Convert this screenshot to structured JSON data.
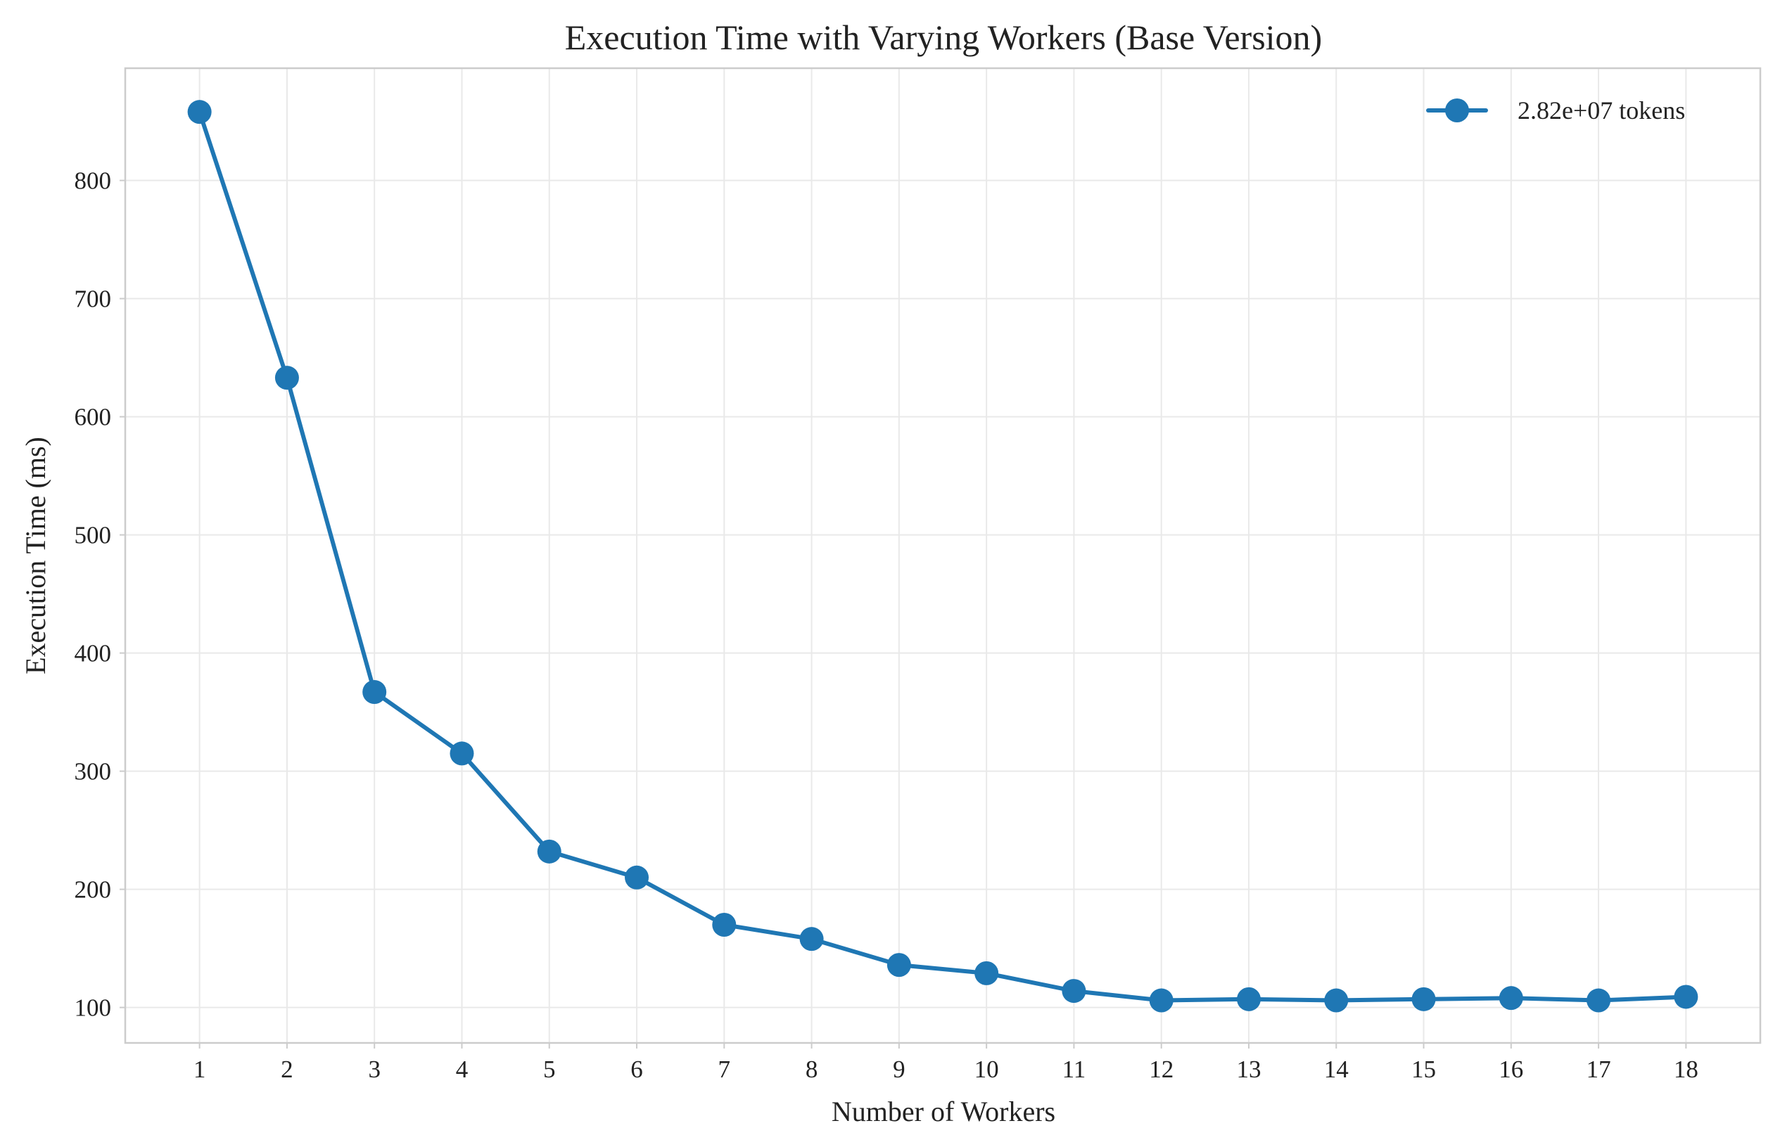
{
  "chart_data": {
    "type": "line",
    "title": "Execution Time with Varying Workers (Base Version)",
    "xlabel": "Number of Workers",
    "ylabel": "Execution Time (ms)",
    "x": [
      1,
      2,
      3,
      4,
      5,
      6,
      7,
      8,
      9,
      10,
      11,
      12,
      13,
      14,
      15,
      16,
      17,
      18
    ],
    "x_tick_labels": [
      "1",
      "2",
      "3",
      "4",
      "5",
      "6",
      "7",
      "8",
      "9",
      "10",
      "11",
      "12",
      "13",
      "14",
      "15",
      "16",
      "17",
      "18"
    ],
    "y_ticks": [
      100,
      200,
      300,
      400,
      500,
      600,
      700,
      800
    ],
    "y_tick_labels": [
      "100",
      "200",
      "300",
      "400",
      "500",
      "600",
      "700",
      "800"
    ],
    "series": [
      {
        "name": "2.82e+07 tokens",
        "color": "#1f77b4",
        "marker": "circle",
        "values": [
          858,
          633,
          367,
          315,
          232,
          210,
          170,
          158,
          136,
          129,
          114,
          106,
          107,
          106,
          107,
          108,
          106,
          109
        ]
      }
    ],
    "xlim": [
      0.15,
      18.85
    ],
    "ylim": [
      70,
      895
    ],
    "grid": true,
    "legend_position": "top-right"
  }
}
